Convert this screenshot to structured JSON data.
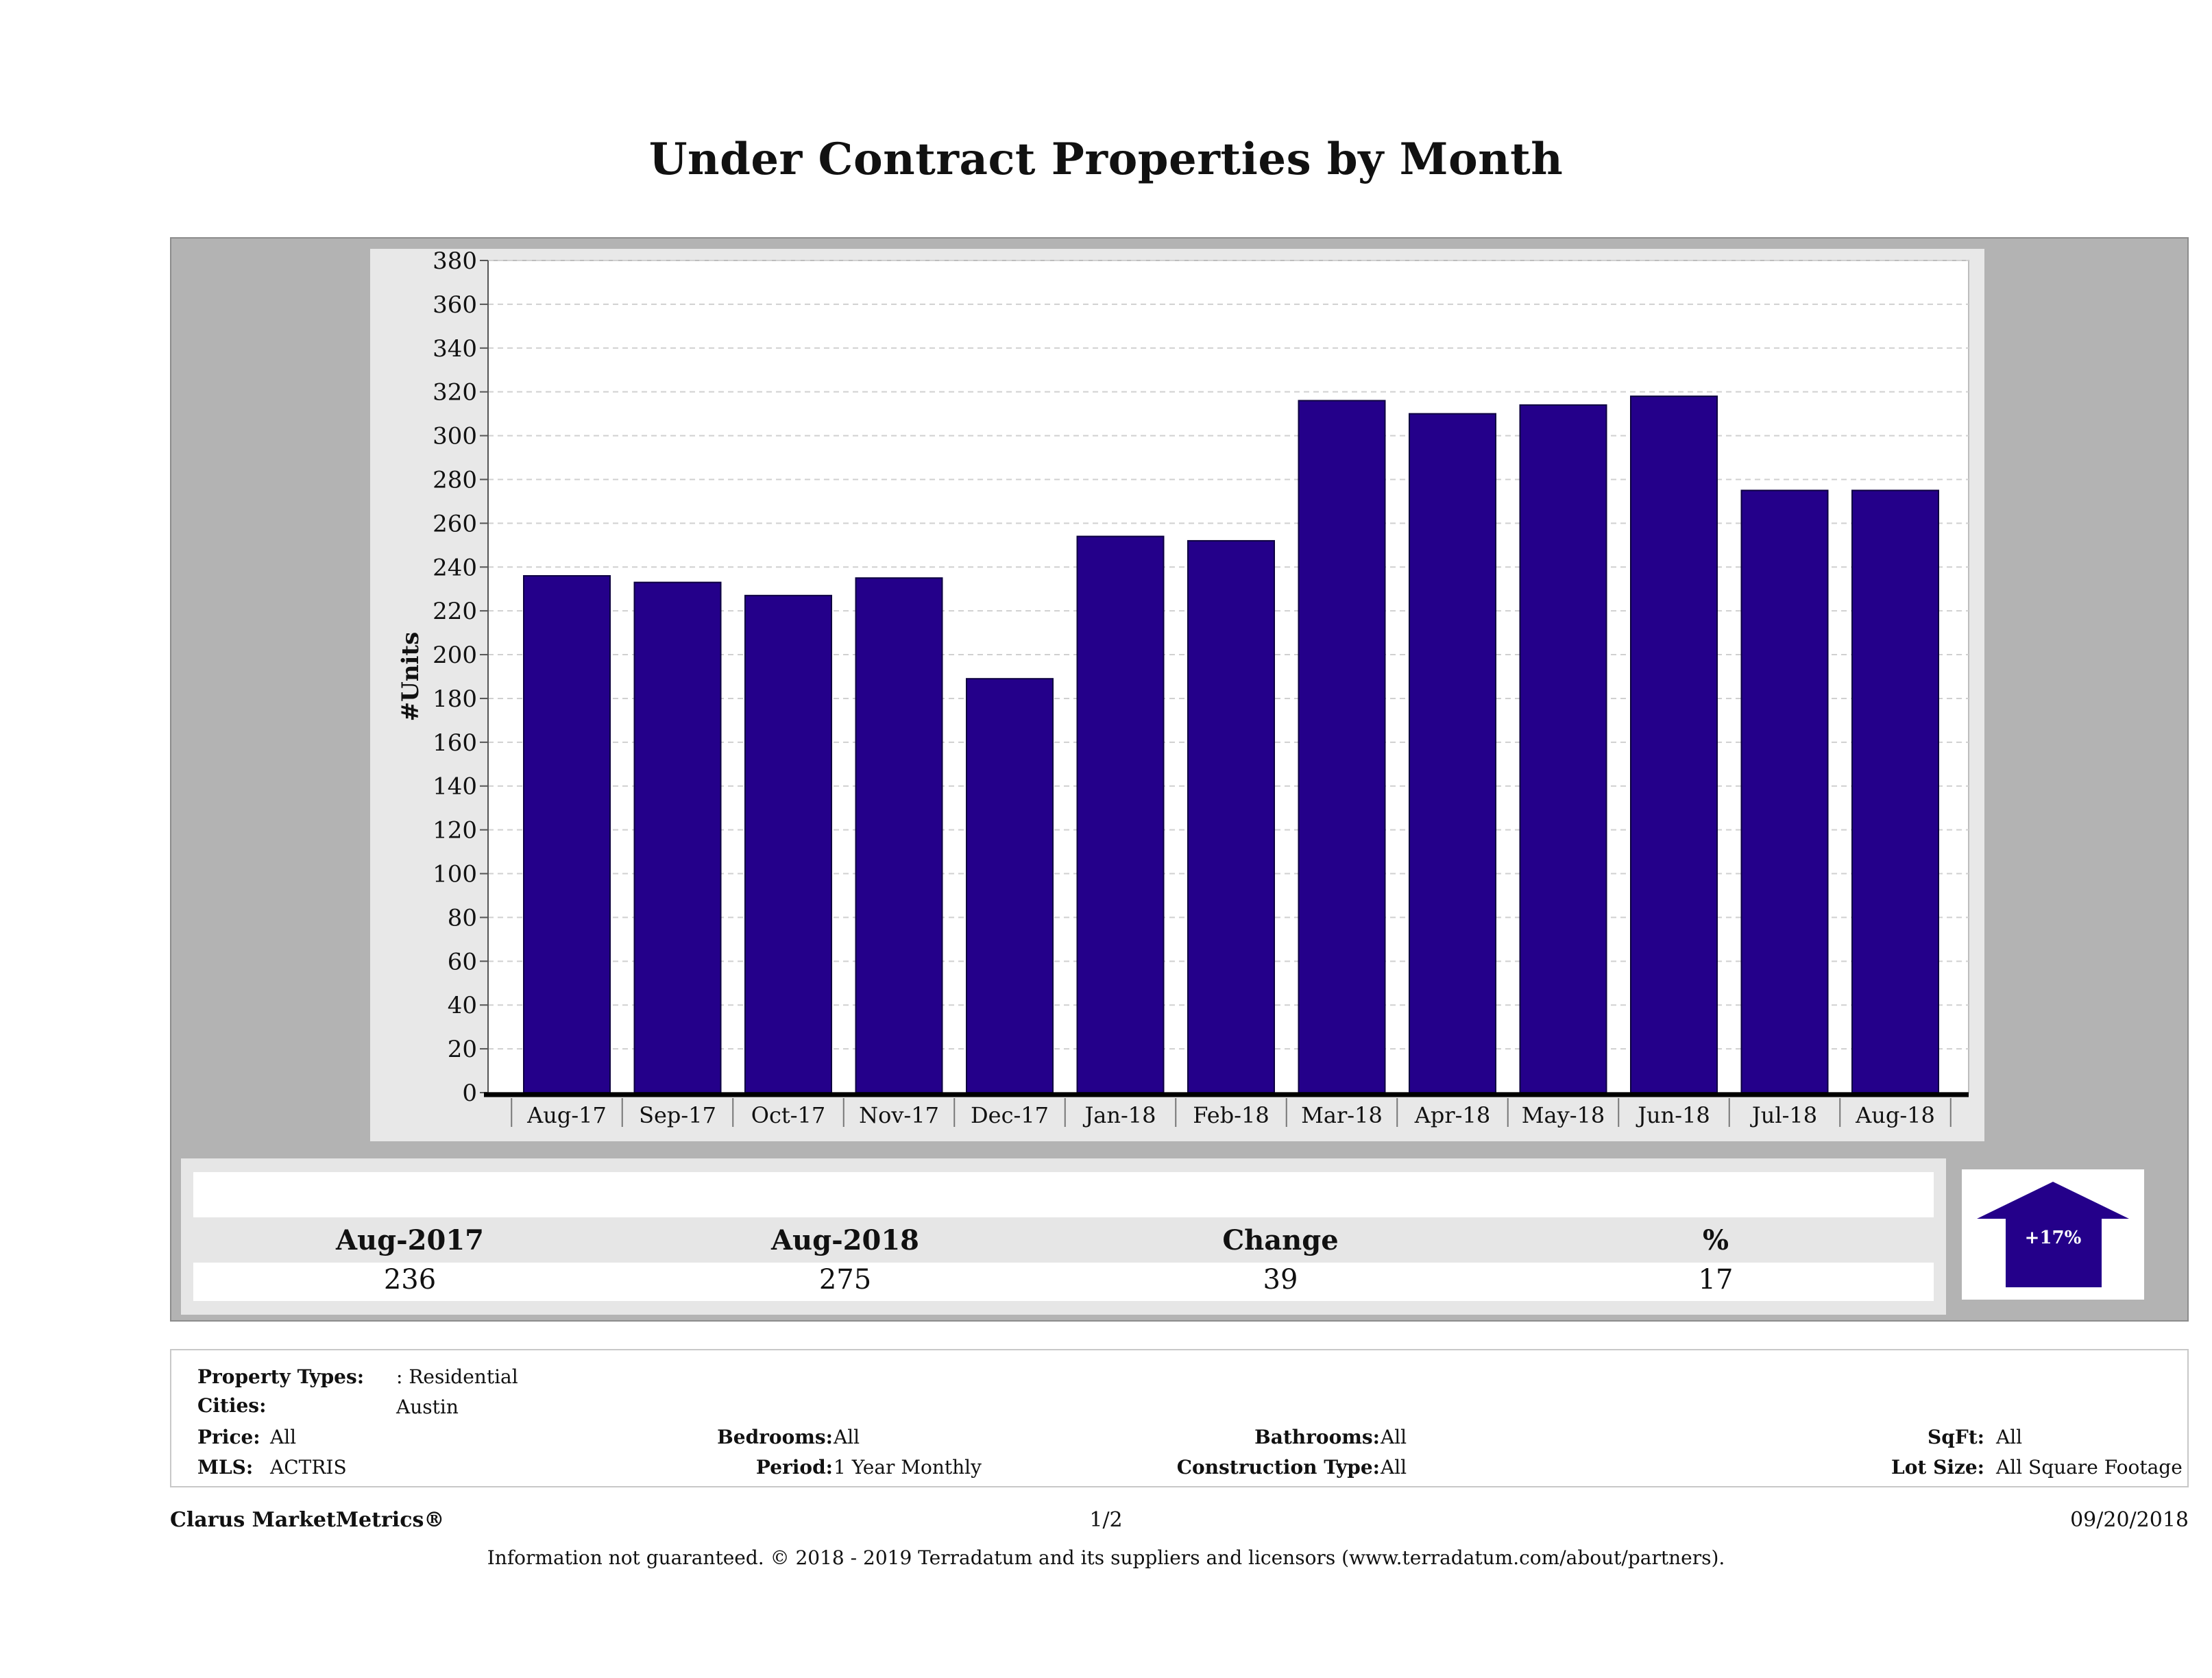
{
  "title": "Under Contract Properties by Month",
  "colors": {
    "bar": "#24008a",
    "panel": "#b3b3b3",
    "plot_bg": "#ffffff",
    "arrow": "#24008a"
  },
  "chart_data": {
    "type": "bar",
    "categories": [
      "Aug-17",
      "Sep-17",
      "Oct-17",
      "Nov-17",
      "Dec-17",
      "Jan-18",
      "Feb-18",
      "Mar-18",
      "Apr-18",
      "May-18",
      "Jun-18",
      "Jul-18",
      "Aug-18"
    ],
    "values": [
      236,
      233,
      227,
      235,
      189,
      254,
      252,
      316,
      310,
      314,
      318,
      275,
      275
    ],
    "ylabel": "#Units",
    "ylim": [
      0,
      380
    ],
    "yticks": [
      0,
      20,
      40,
      60,
      80,
      100,
      120,
      140,
      160,
      180,
      200,
      220,
      240,
      260,
      280,
      300,
      320,
      340,
      360,
      380
    ],
    "grid": true,
    "legend": "none"
  },
  "summary": {
    "headers": [
      "Aug-2017",
      "Aug-2018",
      "Change",
      "%"
    ],
    "values": [
      "236",
      "275",
      "39",
      "17"
    ],
    "arrow_label": "+17%",
    "arrow_icon": "up-arrow-icon"
  },
  "criteria": {
    "property_types_label": "Property Types:",
    "property_types_value": ": Residential",
    "cities_label": "Cities:",
    "cities_value": "Austin",
    "price_label": "Price:",
    "price_value": "All",
    "bedrooms_label": "Bedrooms:",
    "bedrooms_value": "All",
    "bathrooms_label": "Bathrooms:",
    "bathrooms_value": "All",
    "sqft_label": "SqFt:",
    "sqft_value": "All",
    "mls_label": "MLS:",
    "mls_value": "ACTRIS",
    "period_label": "Period:",
    "period_value": "1 Year Monthly",
    "construction_label": "Construction Type:",
    "construction_value": "All",
    "lot_size_label": "Lot Size:",
    "lot_size_value": "All Square Footage"
  },
  "footer": {
    "brand": "Clarus MarketMetrics®",
    "page": "1/2",
    "date": "09/20/2018",
    "disclaimer": "Information not guaranteed. © 2018 - 2019 Terradatum and its suppliers and licensors (www.terradatum.com/about/partners)."
  }
}
